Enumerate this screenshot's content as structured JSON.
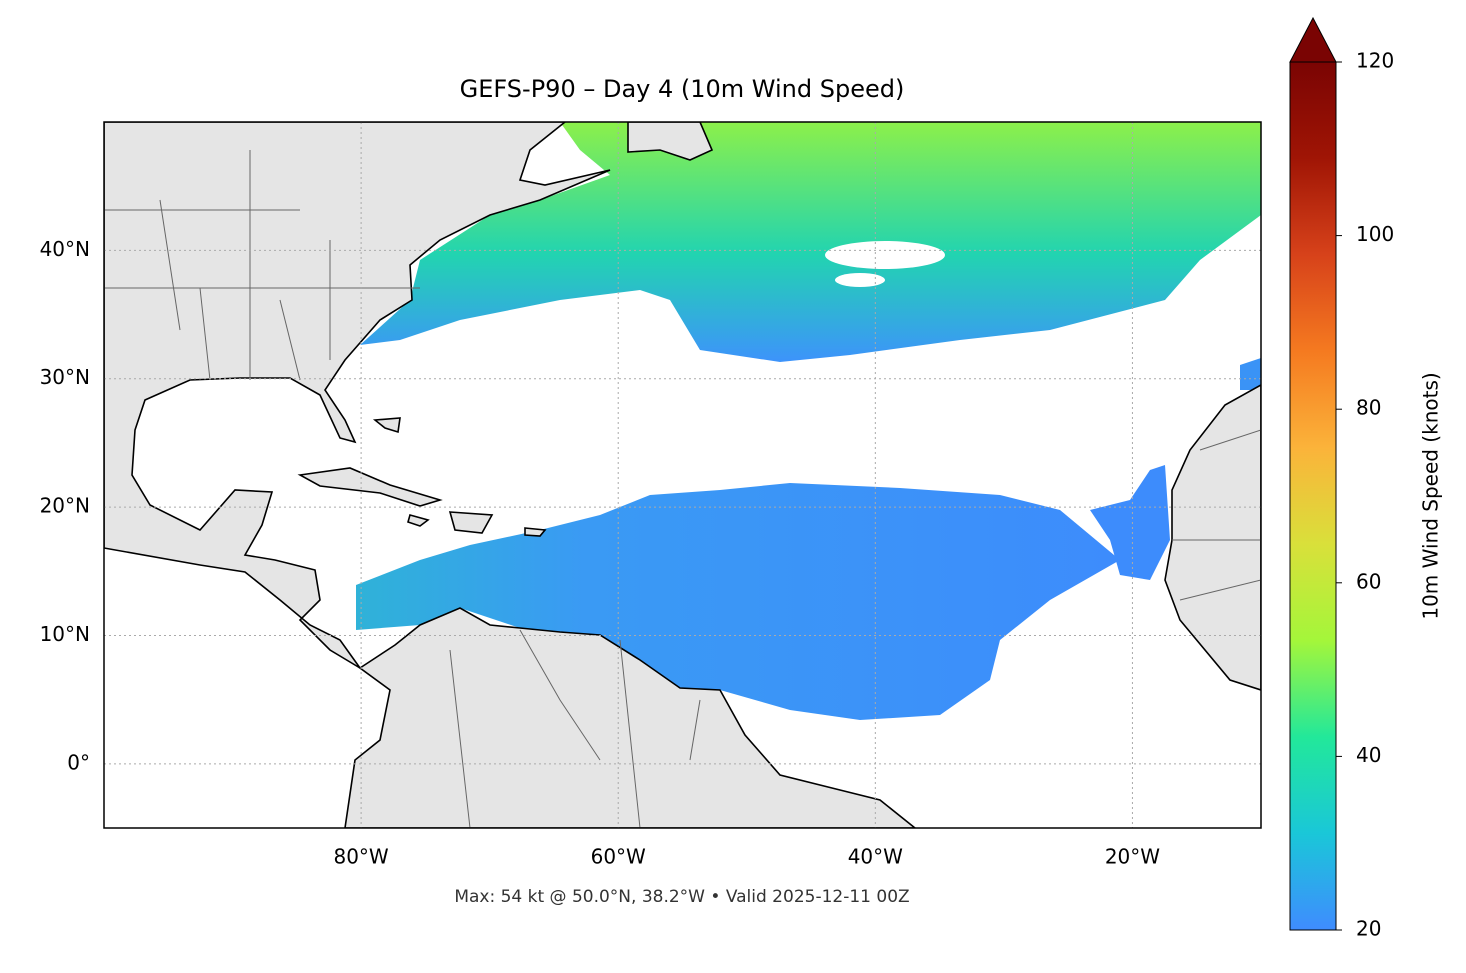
{
  "chart_data": {
    "type": "map",
    "title": "GEFS-P90 – Day 4 (10m Wind Speed)",
    "annotation": "Max: 54 kt @ 50.0°N, 38.2°W • Valid 2025-12-11 00Z",
    "xlim": [
      -100,
      -10
    ],
    "ylim": [
      -5,
      50
    ],
    "xticks": [
      {
        "value": -80,
        "label": "80°W"
      },
      {
        "value": -60,
        "label": "60°W"
      },
      {
        "value": -40,
        "label": "40°W"
      },
      {
        "value": -20,
        "label": "20°W"
      }
    ],
    "yticks": [
      {
        "value": 0,
        "label": "0°"
      },
      {
        "value": 10,
        "label": "10°N"
      },
      {
        "value": 20,
        "label": "20°N"
      },
      {
        "value": 30,
        "label": "30°N"
      },
      {
        "value": 40,
        "label": "40°N"
      }
    ],
    "grid": true,
    "colorbar": {
      "label": "10m Wind Speed (knots)",
      "lim": [
        20,
        120
      ],
      "ticks": [
        20,
        40,
        60,
        80,
        100,
        120
      ],
      "colors": [
        "#3f8cff",
        "#1ac7d8",
        "#22e89a",
        "#a4f63a",
        "#d9e03a",
        "#fbb33a",
        "#f57a20",
        "#d7421a",
        "#a01505",
        "#7a0403"
      ]
    }
  }
}
